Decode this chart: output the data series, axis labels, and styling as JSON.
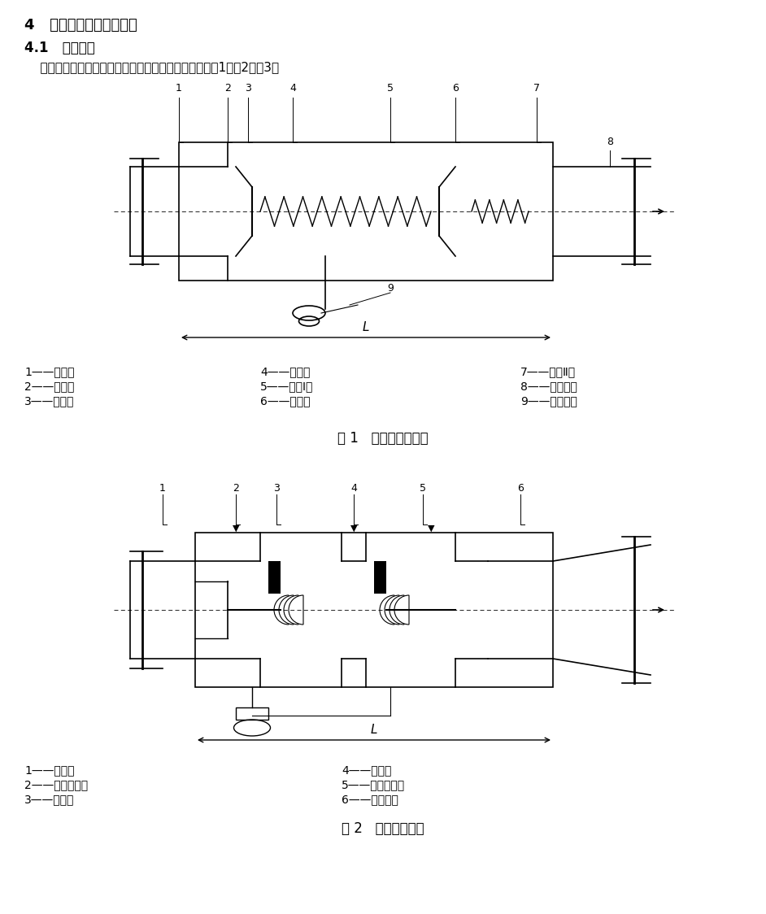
{
  "background_color": "#ffffff",
  "page_title": "4   结构型式、型号及参数",
  "section_title": "4.1   结构型式",
  "section_text": "    中间腔空气隔断型倒流防止器的典型结构型式分别见图1、图2、图3。",
  "fig1_caption": "图 1   缠绕型弹簧结构",
  "fig2_caption": "图 2   碟型弹簧结构",
  "fig1_labels_left": [
    "1——阀体；",
    "2——阀座；",
    "3——阀盖；"
  ],
  "fig1_labels_mid": [
    "4——阀板；",
    "5——弹簧Ⅰ；",
    "6——阀杆；"
  ],
  "fig1_labels_right": [
    "7——弹簧Ⅱ；",
    "8——伸缩管；",
    "9——泄水阀。"
  ],
  "fig2_labels_left": [
    "1——阀体；",
    "2——阀板组件；",
    "3——阀盖；"
  ],
  "fig2_labels_right": [
    "4——阀座；",
    "5——碟形弹簧；",
    "6——泄水阀。"
  ]
}
